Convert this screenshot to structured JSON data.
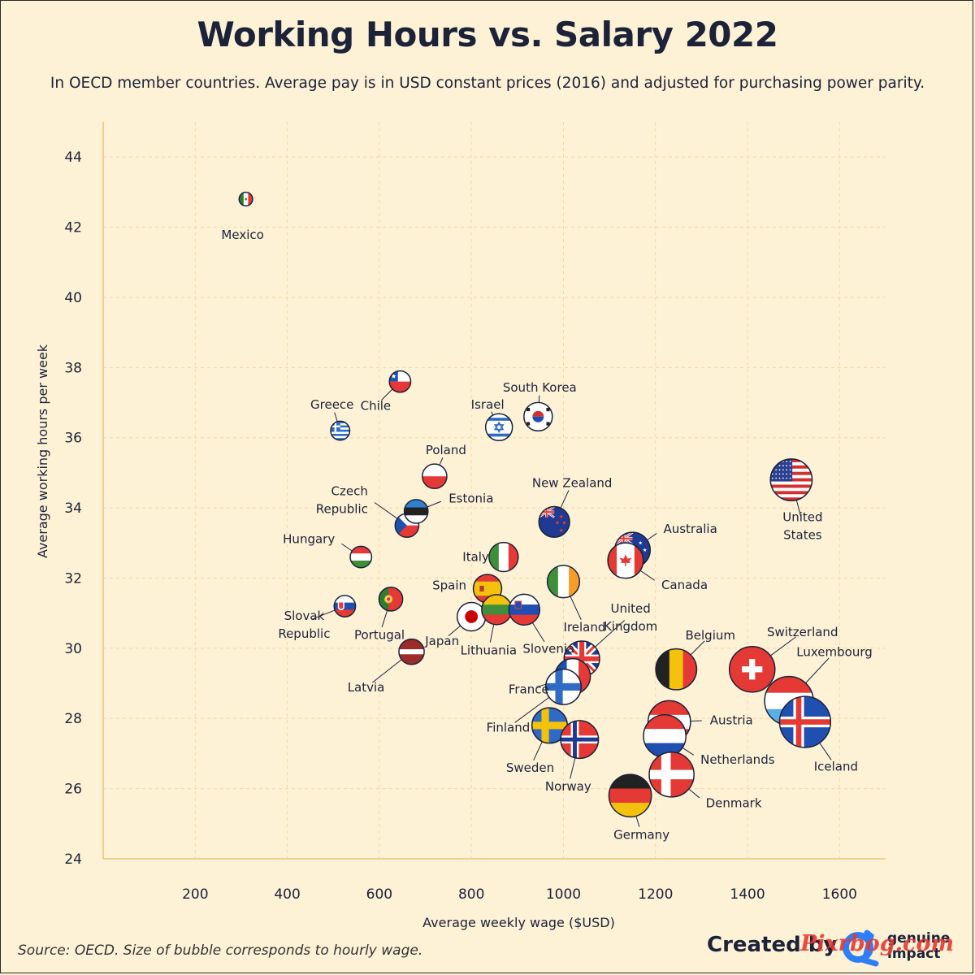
{
  "title": "Working Hours vs. Salary 2022",
  "subtitle": "In OECD member countries. Average pay is in USD constant prices (2016) and adjusted for purchasing power parity.",
  "source": "Source: OECD. Size of bubble corresponds to hourly wage.",
  "credit": "Created by",
  "brand": {
    "line1": "genuine",
    "line2": "impact"
  },
  "watermark": "Pixrbog.com",
  "colors": {
    "background": "#fdf1d6",
    "grid": "#f3d9a3",
    "text": "#1c2238",
    "brand_blue": "#2d7ff9",
    "watermark_red": "#e53935"
  },
  "chart_data": {
    "type": "scatter",
    "title": "Working Hours vs. Salary 2022",
    "xlabel": "Average weekly wage ($USD)",
    "ylabel": "Average working hours per week",
    "xlim": [
      0,
      1700
    ],
    "ylim": [
      24,
      45
    ],
    "xticks": [
      200,
      400,
      600,
      800,
      1000,
      1200,
      1400,
      1600
    ],
    "yticks": [
      24,
      26,
      28,
      30,
      32,
      34,
      36,
      38,
      40,
      42,
      44
    ],
    "grid": true,
    "points": [
      {
        "name": "Mexico",
        "x": 310,
        "y": 42.8,
        "hourly": 7,
        "flag": "mexico"
      },
      {
        "name": "Chile",
        "x": 645,
        "y": 37.6,
        "hourly": 17,
        "flag": "chile"
      },
      {
        "name": "Greece",
        "x": 515,
        "y": 36.2,
        "hourly": 14,
        "flag": "greece"
      },
      {
        "name": "Israel",
        "x": 860,
        "y": 36.3,
        "hourly": 24,
        "flag": "israel"
      },
      {
        "name": "South Korea",
        "x": 945,
        "y": 36.6,
        "hourly": 26,
        "flag": "south-korea"
      },
      {
        "name": "Poland",
        "x": 720,
        "y": 34.9,
        "hourly": 21,
        "flag": "poland"
      },
      {
        "name": "Czech Republic",
        "x": 660,
        "y": 33.5,
        "hourly": 20,
        "flag": "czech-republic"
      },
      {
        "name": "Estonia",
        "x": 680,
        "y": 33.9,
        "hourly": 20,
        "flag": "estonia"
      },
      {
        "name": "New Zealand",
        "x": 980,
        "y": 33.6,
        "hourly": 29,
        "flag": "new-zealand"
      },
      {
        "name": "United States",
        "x": 1495,
        "y": 34.8,
        "hourly": 43,
        "flag": "united-states"
      },
      {
        "name": "Hungary",
        "x": 560,
        "y": 32.6,
        "hourly": 17,
        "flag": "hungary"
      },
      {
        "name": "Australia",
        "x": 1150,
        "y": 32.8,
        "hourly": 35,
        "flag": "australia"
      },
      {
        "name": "Canada",
        "x": 1135,
        "y": 32.5,
        "hourly": 35,
        "flag": "canada"
      },
      {
        "name": "Italy",
        "x": 870,
        "y": 32.6,
        "hourly": 27,
        "flag": "italy"
      },
      {
        "name": "Ireland",
        "x": 1000,
        "y": 31.9,
        "hourly": 31,
        "flag": "ireland"
      },
      {
        "name": "Spain",
        "x": 835,
        "y": 31.7,
        "hourly": 26,
        "flag": "spain"
      },
      {
        "name": "Slovak Republic",
        "x": 525,
        "y": 31.2,
        "hourly": 17,
        "flag": "slovak-republic"
      },
      {
        "name": "Portugal",
        "x": 625,
        "y": 31.4,
        "hourly": 20,
        "flag": "portugal"
      },
      {
        "name": "Japan",
        "x": 800,
        "y": 30.9,
        "hourly": 26,
        "flag": "japan"
      },
      {
        "name": "Lithuania",
        "x": 855,
        "y": 31.1,
        "hourly": 28,
        "flag": "lithuania"
      },
      {
        "name": "Slovenia",
        "x": 915,
        "y": 31.1,
        "hourly": 29,
        "flag": "slovenia"
      },
      {
        "name": "Latvia",
        "x": 670,
        "y": 29.9,
        "hourly": 22,
        "flag": "latvia"
      },
      {
        "name": "United Kingdom",
        "x": 1040,
        "y": 29.7,
        "hourly": 35,
        "flag": "united-kingdom"
      },
      {
        "name": "France",
        "x": 1020,
        "y": 29.2,
        "hourly": 35,
        "flag": "france"
      },
      {
        "name": "Finland",
        "x": 1000,
        "y": 28.9,
        "hourly": 35,
        "flag": "finland"
      },
      {
        "name": "Belgium",
        "x": 1245,
        "y": 29.4,
        "hourly": 42,
        "flag": "belgium"
      },
      {
        "name": "Switzerland",
        "x": 1410,
        "y": 29.4,
        "hourly": 48,
        "flag": "switzerland"
      },
      {
        "name": "Luxembourg",
        "x": 1490,
        "y": 28.5,
        "hourly": 52,
        "flag": "luxembourg"
      },
      {
        "name": "Iceland",
        "x": 1525,
        "y": 27.9,
        "hourly": 55,
        "flag": "iceland"
      },
      {
        "name": "Sweden",
        "x": 970,
        "y": 27.8,
        "hourly": 35,
        "flag": "sweden"
      },
      {
        "name": "Norway",
        "x": 1035,
        "y": 27.4,
        "hourly": 38,
        "flag": "norway"
      },
      {
        "name": "Austria",
        "x": 1230,
        "y": 27.9,
        "hourly": 44,
        "flag": "austria"
      },
      {
        "name": "Netherlands",
        "x": 1220,
        "y": 27.5,
        "hourly": 44,
        "flag": "netherlands"
      },
      {
        "name": "Denmark",
        "x": 1235,
        "y": 26.4,
        "hourly": 47,
        "flag": "denmark"
      },
      {
        "name": "Germany",
        "x": 1145,
        "y": 25.8,
        "hourly": 44,
        "flag": "germany"
      }
    ]
  }
}
